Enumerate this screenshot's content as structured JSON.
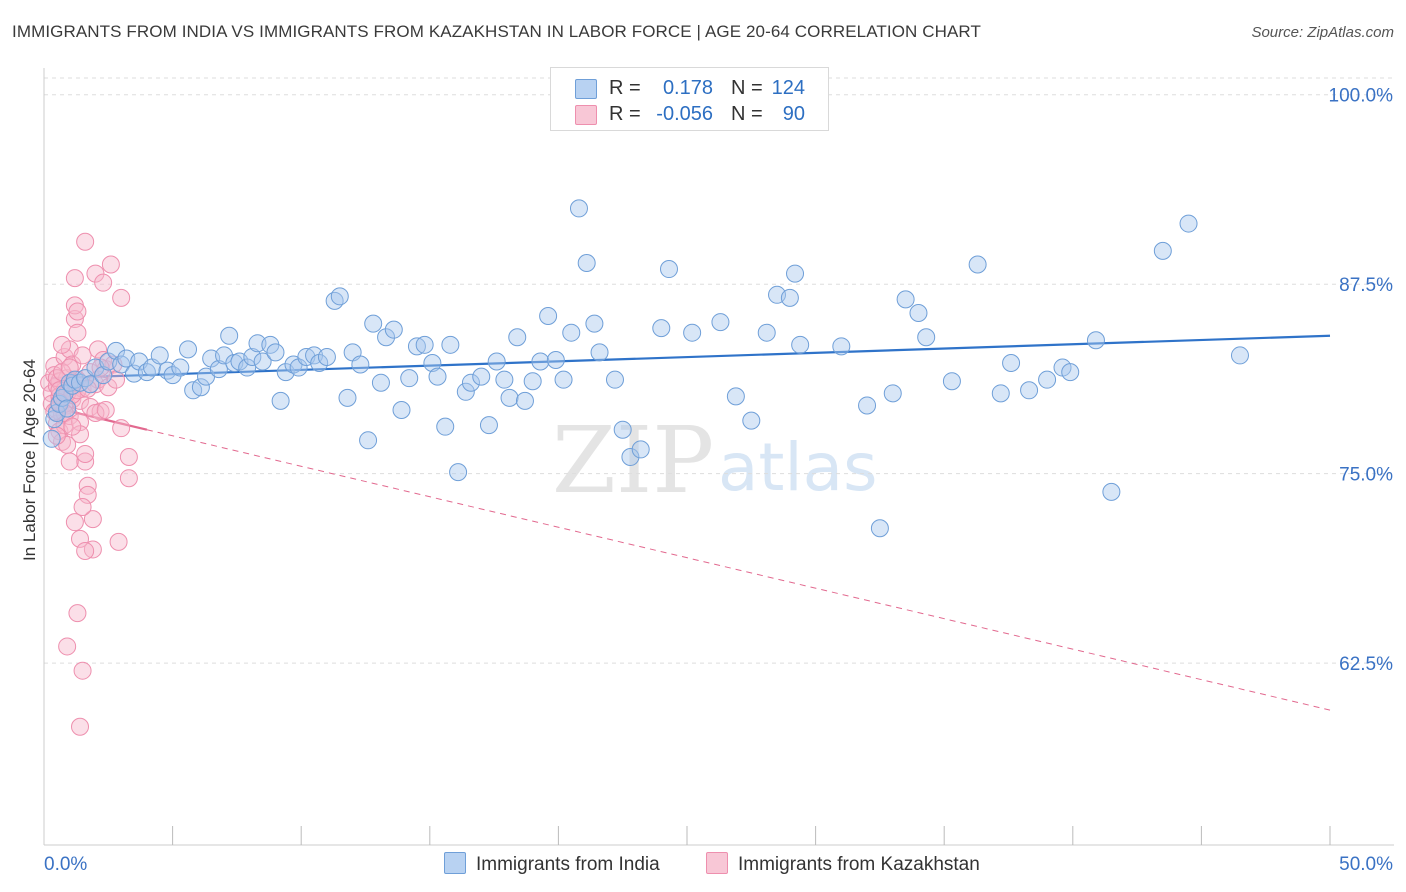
{
  "header": {
    "title": "IMMIGRANTS FROM INDIA VS IMMIGRANTS FROM KAZAKHSTAN IN LABOR FORCE | AGE 20-64 CORRELATION CHART",
    "source": "Source: ZipAtlas.com"
  },
  "legend": {
    "india": {
      "r_label": "R =",
      "r_value": "0.178",
      "n_label": "N =",
      "n_value": "124"
    },
    "kazakhstan": {
      "r_label": "R =",
      "r_value": "-0.056",
      "n_label": "N =",
      "n_value": "90"
    }
  },
  "colors": {
    "india_fill": "#a9c8ee",
    "india_stroke": "#6f9fd8",
    "india_line": "#2f73c9",
    "kaz_fill": "#f6b9cc",
    "kaz_stroke": "#ee8fae",
    "kaz_line": "#e2698f",
    "grid": "#dddddd",
    "tick_text": "#3a72c4"
  },
  "watermark": {
    "zip": "ZIP",
    "atlas": "atlas"
  },
  "chart_data": {
    "type": "scatter",
    "title": "IMMIGRANTS FROM INDIA VS IMMIGRANTS FROM KAZAKHSTAN IN LABOR FORCE | AGE 20-64 CORRELATION CHART",
    "xlabel": "",
    "ylabel": "In Labor Force | Age 20-64",
    "xlim": [
      0,
      50
    ],
    "ylim": [
      50.5,
      101.5
    ],
    "x_tick_labels": [
      "0.0%",
      "50.0%"
    ],
    "y_ticks": [
      62.5,
      75.0,
      87.5,
      100.0
    ],
    "y_tick_labels": [
      "62.5%",
      "75.0%",
      "87.5%",
      "100.0%"
    ],
    "grid": true,
    "legend_position": "top-center",
    "series": [
      {
        "name": "Immigrants from India",
        "trend": {
          "x": [
            0.3,
            50
          ],
          "y": [
            81.3,
            84.1
          ]
        },
        "points": [
          [
            0.3,
            77.3
          ],
          [
            0.4,
            78.6
          ],
          [
            0.5,
            79.0
          ],
          [
            0.6,
            79.6
          ],
          [
            0.7,
            80.0
          ],
          [
            0.8,
            80.3
          ],
          [
            0.9,
            79.3
          ],
          [
            1.0,
            81.0
          ],
          [
            1.1,
            80.8
          ],
          [
            1.2,
            81.2
          ],
          [
            1.4,
            81.0
          ],
          [
            1.6,
            81.3
          ],
          [
            1.8,
            80.9
          ],
          [
            2.0,
            82.0
          ],
          [
            2.3,
            81.5
          ],
          [
            2.5,
            82.4
          ],
          [
            2.8,
            83.1
          ],
          [
            3.0,
            82.2
          ],
          [
            3.2,
            82.6
          ],
          [
            3.5,
            81.6
          ],
          [
            3.7,
            82.4
          ],
          [
            4.0,
            81.7
          ],
          [
            4.2,
            82.0
          ],
          [
            4.5,
            82.8
          ],
          [
            4.8,
            81.8
          ],
          [
            5.0,
            81.5
          ],
          [
            5.3,
            82.0
          ],
          [
            5.6,
            83.2
          ],
          [
            5.8,
            80.5
          ],
          [
            6.1,
            80.7
          ],
          [
            6.3,
            81.4
          ],
          [
            6.5,
            82.6
          ],
          [
            6.8,
            81.9
          ],
          [
            7.0,
            82.8
          ],
          [
            7.2,
            84.1
          ],
          [
            7.4,
            82.3
          ],
          [
            7.6,
            82.4
          ],
          [
            7.9,
            82.0
          ],
          [
            8.1,
            82.7
          ],
          [
            8.3,
            83.6
          ],
          [
            8.5,
            82.4
          ],
          [
            8.8,
            83.5
          ],
          [
            9.0,
            83.0
          ],
          [
            9.2,
            79.8
          ],
          [
            9.4,
            81.7
          ],
          [
            9.7,
            82.2
          ],
          [
            9.9,
            82.0
          ],
          [
            10.2,
            82.7
          ],
          [
            10.5,
            82.8
          ],
          [
            10.7,
            82.3
          ],
          [
            11.0,
            82.7
          ],
          [
            11.3,
            86.4
          ],
          [
            11.5,
            86.7
          ],
          [
            11.8,
            80.0
          ],
          [
            12.0,
            83.0
          ],
          [
            12.3,
            82.2
          ],
          [
            12.6,
            77.2
          ],
          [
            12.8,
            84.9
          ],
          [
            13.1,
            81.0
          ],
          [
            13.3,
            84.0
          ],
          [
            13.6,
            84.5
          ],
          [
            13.9,
            79.2
          ],
          [
            14.2,
            81.3
          ],
          [
            14.5,
            83.4
          ],
          [
            14.8,
            83.5
          ],
          [
            15.1,
            82.3
          ],
          [
            15.3,
            81.4
          ],
          [
            15.6,
            78.1
          ],
          [
            15.8,
            83.5
          ],
          [
            16.1,
            75.1
          ],
          [
            16.4,
            80.4
          ],
          [
            16.6,
            81.0
          ],
          [
            17.0,
            81.4
          ],
          [
            17.3,
            78.2
          ],
          [
            17.6,
            82.4
          ],
          [
            17.9,
            81.2
          ],
          [
            18.1,
            80.0
          ],
          [
            18.4,
            84.0
          ],
          [
            18.7,
            79.8
          ],
          [
            19.0,
            81.1
          ],
          [
            19.3,
            82.4
          ],
          [
            19.6,
            85.4
          ],
          [
            19.9,
            82.5
          ],
          [
            20.2,
            81.2
          ],
          [
            20.5,
            84.3
          ],
          [
            20.8,
            92.5
          ],
          [
            21.1,
            88.9
          ],
          [
            21.4,
            84.9
          ],
          [
            21.6,
            83.0
          ],
          [
            22.2,
            81.2
          ],
          [
            22.5,
            77.9
          ],
          [
            22.8,
            76.1
          ],
          [
            23.2,
            76.6
          ],
          [
            24.0,
            84.6
          ],
          [
            24.3,
            88.5
          ],
          [
            25.2,
            84.3
          ],
          [
            26.3,
            85.0
          ],
          [
            26.9,
            80.1
          ],
          [
            27.5,
            78.5
          ],
          [
            28.1,
            84.3
          ],
          [
            28.5,
            86.8
          ],
          [
            29.0,
            86.6
          ],
          [
            29.2,
            88.2
          ],
          [
            29.4,
            83.5
          ],
          [
            31.0,
            83.4
          ],
          [
            32.0,
            79.5
          ],
          [
            32.5,
            71.4
          ],
          [
            33.0,
            80.3
          ],
          [
            33.5,
            86.5
          ],
          [
            34.0,
            85.6
          ],
          [
            34.3,
            84.0
          ],
          [
            35.3,
            81.1
          ],
          [
            36.3,
            88.8
          ],
          [
            37.2,
            80.3
          ],
          [
            37.6,
            82.3
          ],
          [
            38.3,
            80.5
          ],
          [
            39.0,
            81.2
          ],
          [
            39.6,
            82.0
          ],
          [
            39.9,
            81.7
          ],
          [
            40.9,
            83.8
          ],
          [
            41.5,
            73.8
          ],
          [
            43.5,
            89.7
          ],
          [
            44.5,
            91.5
          ],
          [
            46.5,
            82.8
          ]
        ]
      },
      {
        "name": "Immigrants from Kazakhstan",
        "trend": {
          "x": [
            0.3,
            4.0
          ],
          "y": [
            79.4,
            77.9
          ]
        },
        "trend_extension": {
          "x": [
            4.0,
            50
          ],
          "y": [
            77.9,
            59.4
          ]
        },
        "points": [
          [
            0.2,
            81.0
          ],
          [
            0.3,
            80.3
          ],
          [
            0.3,
            79.6
          ],
          [
            0.4,
            82.1
          ],
          [
            0.4,
            81.5
          ],
          [
            0.5,
            80.8
          ],
          [
            0.5,
            79.2
          ],
          [
            0.5,
            78.3
          ],
          [
            0.6,
            77.8
          ],
          [
            0.6,
            80.1
          ],
          [
            0.6,
            81.1
          ],
          [
            0.7,
            78.9
          ],
          [
            0.7,
            79.9
          ],
          [
            0.7,
            77.1
          ],
          [
            0.8,
            82.7
          ],
          [
            0.8,
            80.5
          ],
          [
            0.8,
            78.2
          ],
          [
            0.9,
            79.5
          ],
          [
            0.9,
            81.3
          ],
          [
            0.9,
            76.9
          ],
          [
            1.0,
            80.9
          ],
          [
            1.0,
            83.2
          ],
          [
            1.0,
            78.8
          ],
          [
            1.1,
            79.9
          ],
          [
            1.1,
            82.2
          ],
          [
            1.2,
            85.2
          ],
          [
            1.2,
            86.1
          ],
          [
            1.2,
            87.9
          ],
          [
            1.3,
            85.7
          ],
          [
            1.3,
            84.3
          ],
          [
            1.3,
            81.2
          ],
          [
            1.4,
            79.8
          ],
          [
            1.4,
            78.4
          ],
          [
            1.4,
            77.6
          ],
          [
            1.5,
            80.6
          ],
          [
            1.5,
            82.8
          ],
          [
            1.6,
            75.8
          ],
          [
            1.6,
            76.3
          ],
          [
            1.7,
            74.2
          ],
          [
            1.7,
            73.6
          ],
          [
            1.8,
            81.7
          ],
          [
            1.8,
            79.4
          ],
          [
            1.9,
            70.0
          ],
          [
            1.9,
            72.0
          ],
          [
            2.0,
            80.9
          ],
          [
            2.0,
            88.2
          ],
          [
            2.1,
            83.2
          ],
          [
            2.1,
            81.2
          ],
          [
            2.2,
            79.1
          ],
          [
            2.3,
            87.6
          ],
          [
            2.3,
            82.5
          ],
          [
            2.4,
            81.9
          ],
          [
            2.5,
            80.7
          ],
          [
            2.6,
            88.8
          ],
          [
            2.7,
            82.2
          ],
          [
            2.8,
            81.2
          ],
          [
            2.9,
            70.5
          ],
          [
            3.0,
            86.6
          ],
          [
            3.0,
            78.0
          ],
          [
            3.3,
            76.1
          ],
          [
            3.3,
            74.7
          ],
          [
            0.8,
            79.6
          ],
          [
            1.0,
            75.8
          ],
          [
            1.2,
            71.8
          ],
          [
            1.4,
            70.7
          ],
          [
            1.5,
            72.8
          ],
          [
            1.6,
            69.9
          ],
          [
            1.3,
            65.8
          ],
          [
            0.9,
            63.6
          ],
          [
            1.5,
            62.0
          ],
          [
            1.4,
            58.3
          ],
          [
            1.6,
            90.3
          ],
          [
            0.5,
            81.3
          ],
          [
            0.6,
            80.5
          ],
          [
            0.7,
            81.7
          ],
          [
            0.8,
            79.0
          ],
          [
            0.9,
            80.3
          ],
          [
            1.0,
            82.0
          ],
          [
            1.1,
            80.2
          ],
          [
            1.2,
            81.0
          ],
          [
            0.4,
            79.1
          ],
          [
            0.5,
            77.5
          ],
          [
            0.6,
            79.7
          ],
          [
            1.1,
            78.1
          ],
          [
            1.3,
            80.5
          ],
          [
            1.7,
            80.6
          ],
          [
            2.0,
            79.0
          ],
          [
            2.2,
            82.0
          ],
          [
            0.7,
            83.5
          ],
          [
            2.4,
            79.2
          ]
        ]
      }
    ]
  },
  "bottom_legend": {
    "india": "Immigrants from India",
    "kazakhstan": "Immigrants from Kazakhstan"
  }
}
